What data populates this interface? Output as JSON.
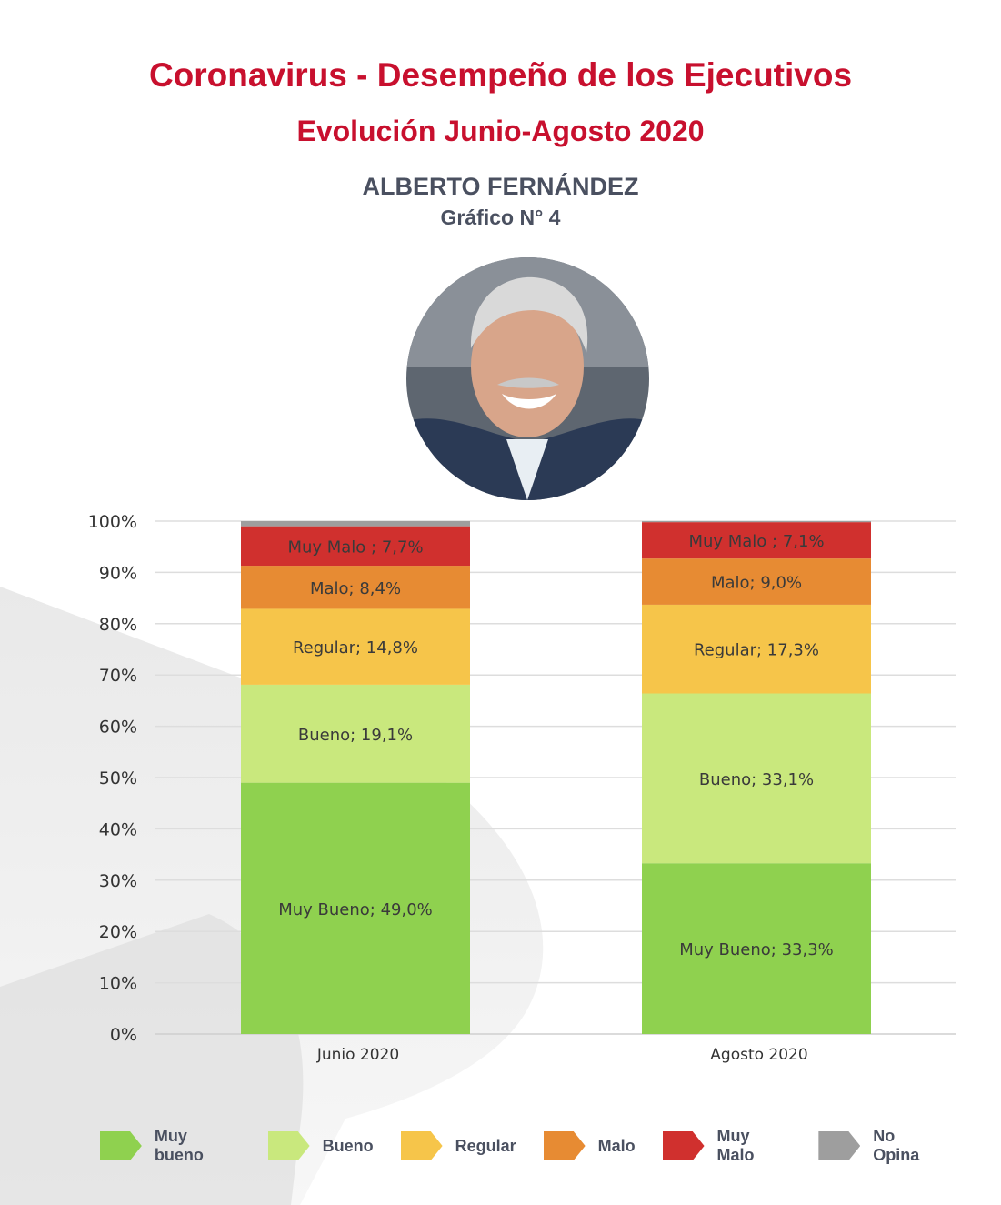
{
  "header": {
    "title": "Coronavirus - Desempeño de los Ejecutivos",
    "subtitle": "Evolución Junio-Agosto 2020",
    "person_name": "ALBERTO FERNÁNDEZ",
    "chart_number": "Gráfico N° 4"
  },
  "colors": {
    "title": "#c8102e",
    "text": "#4a5060",
    "muy_bueno": "#8fd14f",
    "bueno": "#c9e87d",
    "regular": "#f6c54a",
    "malo": "#e78b33",
    "muy_malo": "#d0302e",
    "no_opina": "#9e9e9e"
  },
  "chart_data": {
    "type": "bar",
    "stacked": true,
    "categories": [
      "Junio 2020",
      "Agosto 2020"
    ],
    "series": [
      {
        "name": "Muy bueno",
        "values": [
          49.0,
          33.3
        ],
        "color": "#8fd14f",
        "labels": [
          "Muy Bueno; 49,0%",
          "Muy Bueno; 33,3%"
        ]
      },
      {
        "name": "Bueno",
        "values": [
          19.1,
          33.1
        ],
        "color": "#c9e87d",
        "labels": [
          "Bueno; 19,1%",
          "Bueno; 33,1%"
        ]
      },
      {
        "name": "Regular",
        "values": [
          14.8,
          17.3
        ],
        "color": "#f6c54a",
        "labels": [
          "Regular; 14,8%",
          "Regular; 17,3%"
        ]
      },
      {
        "name": "Malo",
        "values": [
          8.4,
          9.0
        ],
        "color": "#e78b33",
        "labels": [
          "Malo; 8,4%",
          "Malo; 9,0%"
        ]
      },
      {
        "name": "Muy Malo",
        "values": [
          7.7,
          7.1
        ],
        "color": "#d0302e",
        "labels": [
          "Muy Malo ; 7,7%",
          "Muy Malo ; 7,1%"
        ]
      },
      {
        "name": "No Opina",
        "values": [
          1.0,
          0.2
        ],
        "color": "#9e9e9e",
        "labels": [
          "",
          ""
        ]
      }
    ],
    "yticks": [
      "0%",
      "10%",
      "20%",
      "30%",
      "40%",
      "50%",
      "60%",
      "70%",
      "80%",
      "90%",
      "100%"
    ],
    "ylim": [
      0,
      100
    ],
    "grid": true,
    "legend_position": "bottom"
  }
}
